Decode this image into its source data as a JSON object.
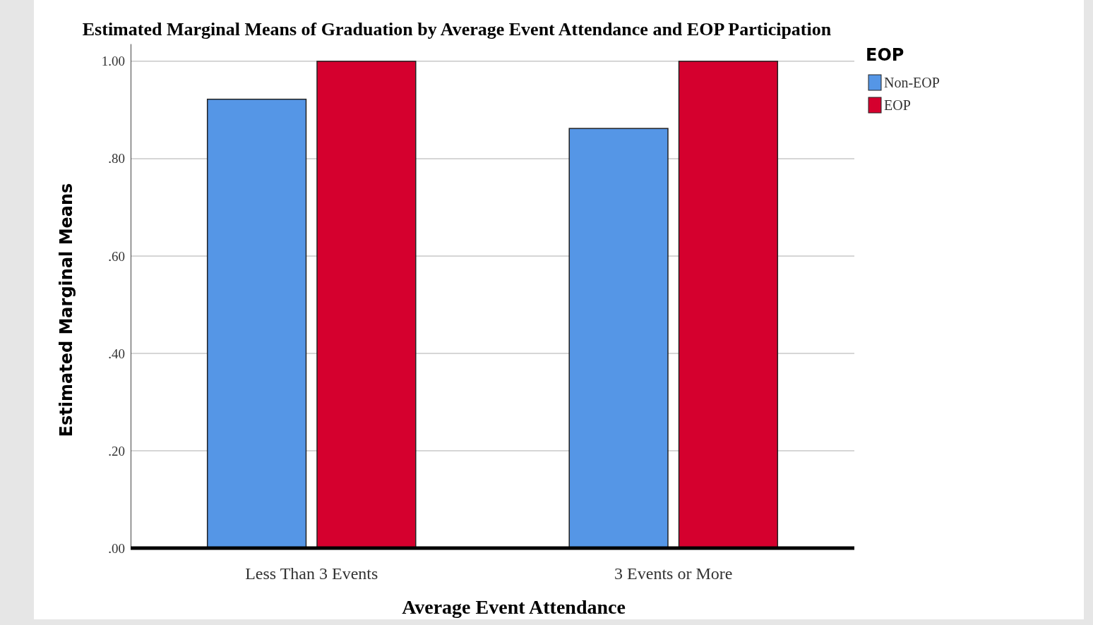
{
  "chart_data": {
    "type": "bar",
    "title": "Estimated Marginal Means of Graduation by Average Event Attendance and EOP Participation",
    "xlabel": "Average Event Attendance",
    "ylabel": "Estimated Marginal Means",
    "legend_title": "EOP",
    "categories": [
      "Less Than 3 Events",
      "3 Events or More"
    ],
    "series": [
      {
        "name": "Non-EOP",
        "color": "#5596e6",
        "values": [
          0.922,
          0.862
        ]
      },
      {
        "name": "EOP",
        "color": "#d5002e",
        "values": [
          1.0,
          1.0
        ]
      }
    ],
    "ylim": [
      0,
      1.036
    ],
    "yticks": [
      {
        "value": 0,
        "label": ".00"
      },
      {
        "value": 0.2,
        "label": ".20"
      },
      {
        "value": 0.4,
        "label": ".40"
      },
      {
        "value": 0.6,
        "label": ".60"
      },
      {
        "value": 0.8,
        "label": ".80"
      },
      {
        "value": 1.0,
        "label": "1.00"
      }
    ],
    "grid": "y",
    "legend": "top right"
  }
}
